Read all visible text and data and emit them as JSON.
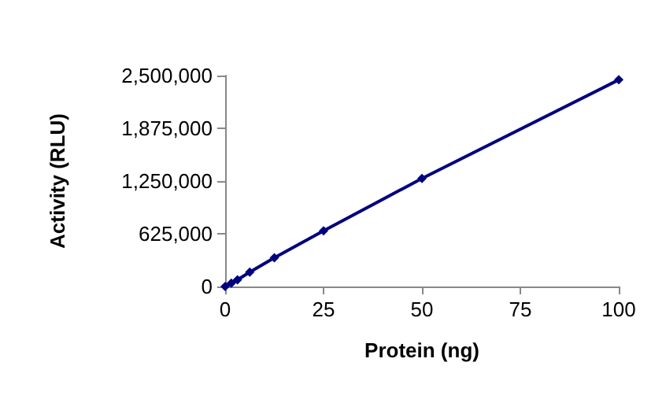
{
  "chart_data": {
    "type": "line",
    "xlabel": "Protein (ng)",
    "ylabel": "Activity (RLU)",
    "x": [
      0,
      1.5625,
      3.125,
      6.25,
      12.5,
      25,
      50,
      100
    ],
    "series": [
      {
        "color": "#000080",
        "values": [
          0,
          40000,
          80000,
          170000,
          340000,
          660000,
          1280000,
          2450000
        ]
      }
    ],
    "xlim": [
      0,
      100
    ],
    "xticks": [
      0,
      25,
      50,
      75,
      100
    ],
    "ylim": [
      0,
      2500000
    ],
    "yticks": [
      0,
      {
        "value": 625000,
        "label": "625,000"
      },
      {
        "value": 1250000,
        "label": "1,250,000"
      },
      {
        "value": 1875000,
        "label": "1,875,000"
      },
      {
        "value": 2500000,
        "label": "2,500,000"
      }
    ],
    "grid": false,
    "marker": "diamond",
    "line_style": "solid"
  }
}
